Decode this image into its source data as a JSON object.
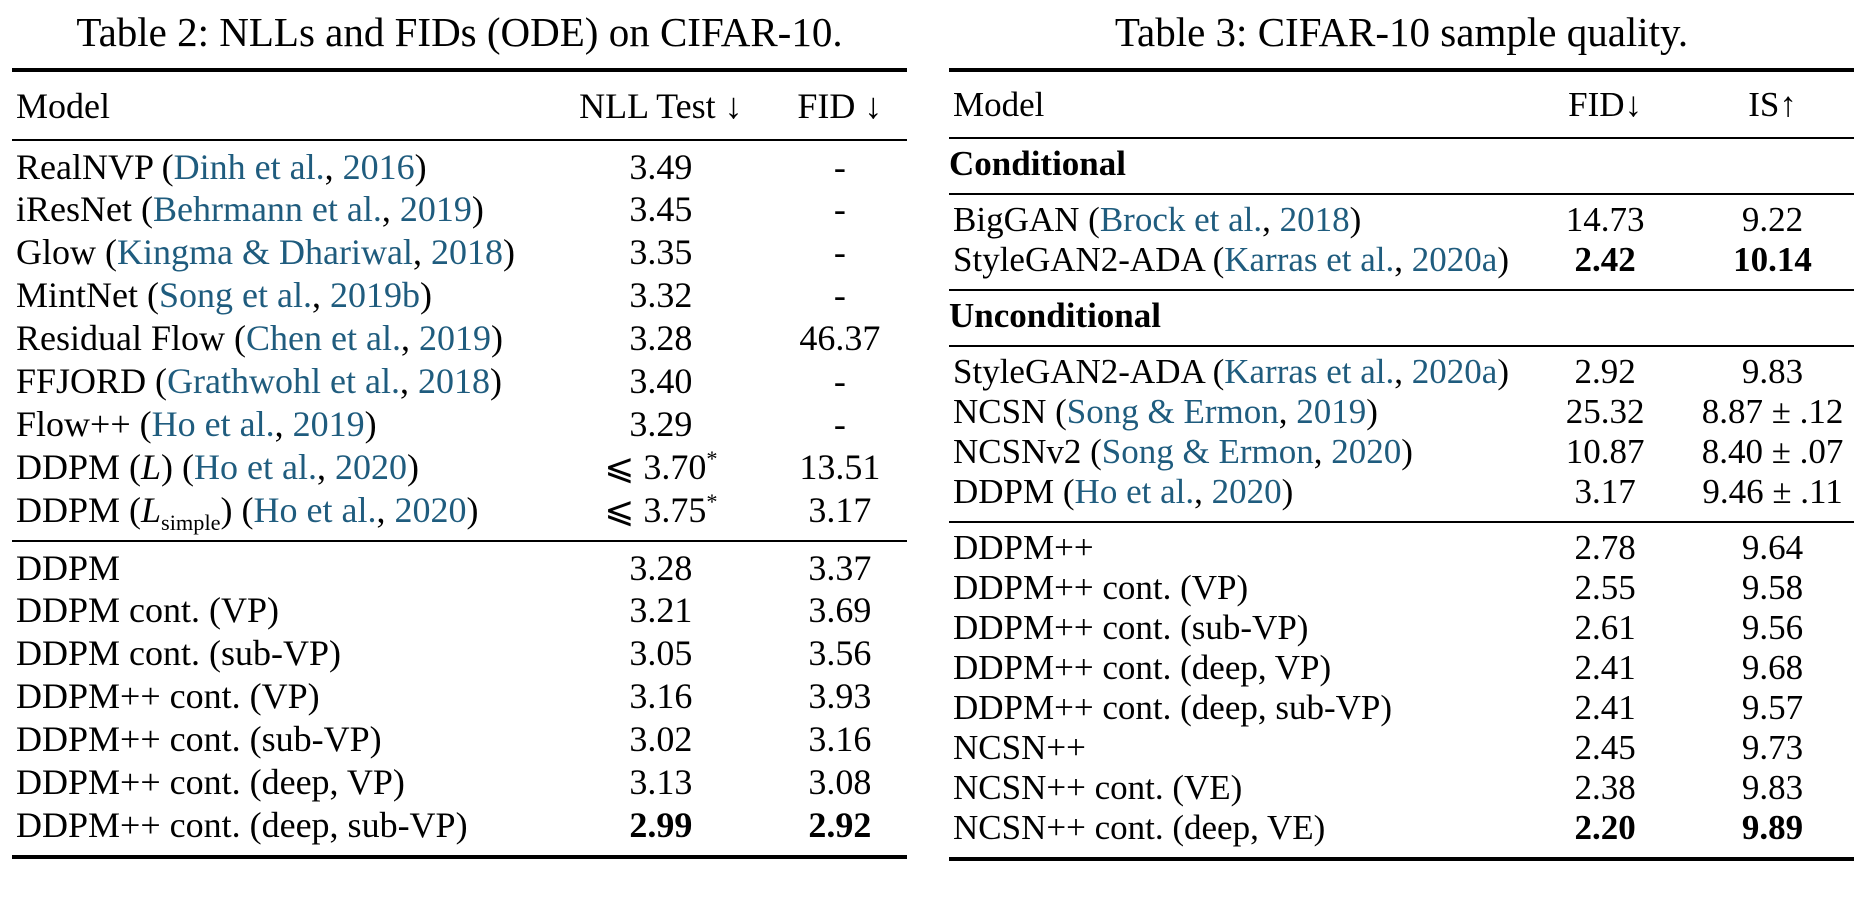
{
  "colors": {
    "citation": "#1f5c7e",
    "text": "#000000",
    "rule": "#000000",
    "background": "#ffffff"
  },
  "table2": {
    "title": "Table 2: NLLs and FIDs (ODE) on CIFAR-10.",
    "columns": [
      "Model",
      "NLL Test ↓",
      "FID ↓"
    ],
    "blocks": [
      {
        "type": "rows",
        "rows": [
          {
            "model": "RealNVP",
            "authors": "Dinh et al.",
            "year": "2016",
            "v1": "3.49",
            "v2": "-"
          },
          {
            "model": "iResNet",
            "authors": "Behrmann et al.",
            "year": "2019",
            "v1": "3.45",
            "v2": "-"
          },
          {
            "model": "Glow",
            "authors": "Kingma & Dhariwal",
            "year": "2018",
            "v1": "3.35",
            "v2": "-"
          },
          {
            "model": "MintNet",
            "authors": "Song et al.",
            "year": "2019b",
            "v1": "3.32",
            "v2": "-"
          },
          {
            "model": "Residual Flow",
            "authors": "Chen et al.",
            "year": "2019",
            "v1": "3.28",
            "v2": "46.37"
          },
          {
            "model": "FFJORD",
            "authors": "Grathwohl et al.",
            "year": "2018",
            "v1": "3.40",
            "v2": "-"
          },
          {
            "model": "Flow++",
            "authors": "Ho et al.",
            "year": "2019",
            "v1": "3.29",
            "v2": "-"
          },
          {
            "model": "DDPM (*L*)",
            "authors": "Ho et al.",
            "year": "2020",
            "v1": "⩽ 3.70^*^",
            "v2": "13.51"
          },
          {
            "model": "DDPM (*L*_simple_)",
            "authors": "Ho et al.",
            "year": "2020",
            "v1": "⩽ 3.75^*^",
            "v2": "3.17"
          }
        ]
      },
      {
        "type": "rows",
        "rows": [
          {
            "model": "DDPM",
            "v1": "3.28",
            "v2": "3.37"
          },
          {
            "model": "DDPM cont. (VP)",
            "v1": "3.21",
            "v2": "3.69"
          },
          {
            "model": "DDPM cont. (sub-VP)",
            "v1": "3.05",
            "v2": "3.56"
          },
          {
            "model": "DDPM++ cont. (VP)",
            "v1": "3.16",
            "v2": "3.93"
          },
          {
            "model": "DDPM++ cont. (sub-VP)",
            "v1": "3.02",
            "v2": "3.16"
          },
          {
            "model": "DDPM++ cont. (deep, VP)",
            "v1": "3.13",
            "v2": "3.08"
          },
          {
            "model": "DDPM++ cont. (deep, sub-VP)",
            "v1": "2.99",
            "v2": "2.92",
            "bold": true
          }
        ]
      }
    ]
  },
  "table3": {
    "title": "Table 3: CIFAR-10 sample quality.",
    "columns": [
      "Model",
      "FID↓",
      "IS↑"
    ],
    "blocks": [
      {
        "type": "section",
        "label": "Conditional"
      },
      {
        "type": "rows",
        "rows": [
          {
            "model": "BigGAN",
            "authors": "Brock et al.",
            "year": "2018",
            "v1": "14.73",
            "v2": "9.22"
          },
          {
            "model": "StyleGAN2-ADA",
            "authors": "Karras et al.",
            "year": "2020a",
            "v1": "2.42",
            "v2": "10.14",
            "bold": true
          }
        ]
      },
      {
        "type": "section",
        "label": "Unconditional"
      },
      {
        "type": "rows",
        "rows": [
          {
            "model": "StyleGAN2-ADA",
            "authors": "Karras et al.",
            "year": "2020a",
            "v1": "2.92",
            "v2": "9.83"
          },
          {
            "model": "NCSN",
            "authors": "Song & Ermon",
            "year": "2019",
            "v1": "25.32",
            "v2": "8.87 ± .12"
          },
          {
            "model": "NCSNv2",
            "authors": "Song & Ermon",
            "year": "2020",
            "v1": "10.87",
            "v2": "8.40 ± .07"
          },
          {
            "model": "DDPM",
            "authors": "Ho et al.",
            "year": "2020",
            "v1": "3.17",
            "v2": "9.46 ± .11"
          }
        ]
      },
      {
        "type": "rows",
        "rows": [
          {
            "model": "DDPM++",
            "v1": "2.78",
            "v2": "9.64"
          },
          {
            "model": "DDPM++ cont. (VP)",
            "v1": "2.55",
            "v2": "9.58"
          },
          {
            "model": "DDPM++ cont. (sub-VP)",
            "v1": "2.61",
            "v2": "9.56"
          },
          {
            "model": "DDPM++ cont. (deep, VP)",
            "v1": "2.41",
            "v2": "9.68"
          },
          {
            "model": "DDPM++ cont. (deep, sub-VP)",
            "v1": "2.41",
            "v2": "9.57"
          },
          {
            "model": "NCSN++",
            "v1": "2.45",
            "v2": "9.73"
          },
          {
            "model": "NCSN++ cont. (VE)",
            "v1": "2.38",
            "v2": "9.83"
          },
          {
            "model": "NCSN++ cont. (deep, VE)",
            "v1": "2.20",
            "v2": "9.89",
            "bold": true
          }
        ]
      }
    ]
  }
}
